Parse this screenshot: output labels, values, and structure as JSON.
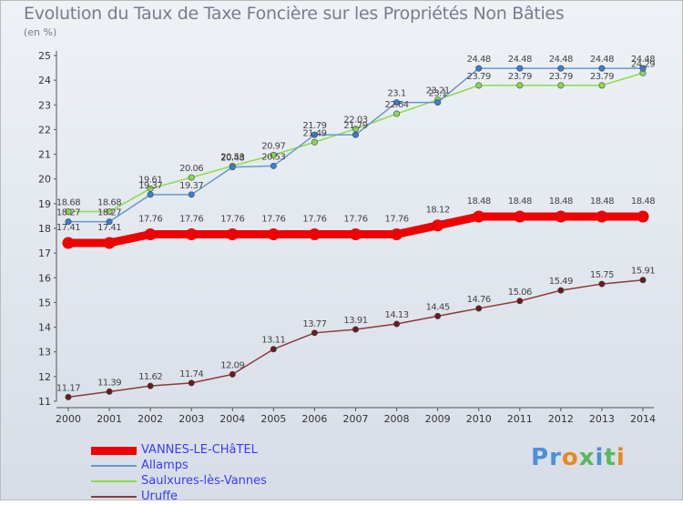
{
  "header": {
    "title": "Evolution du Taux de Taxe Foncière sur les Propriétés Non Bâties",
    "unit": "(en %)"
  },
  "logo": {
    "text": "Proxiti",
    "colors": [
      "#4a90d9",
      "#4a90d9",
      "#e8871e",
      "#5cb85c",
      "#4a90d9",
      "#5cb85c",
      "#e8871e"
    ]
  },
  "chart_data": {
    "type": "line",
    "title": "Evolution du Taux de Taxe Foncière sur les Propriétés Non Bâties",
    "ylabel": "(en %)",
    "xlabel": "",
    "x": [
      2000,
      2001,
      2002,
      2003,
      2004,
      2005,
      2006,
      2007,
      2008,
      2009,
      2010,
      2011,
      2012,
      2013,
      2014
    ],
    "ylim": [
      11,
      25
    ],
    "yticks": [
      11,
      12,
      13,
      14,
      15,
      16,
      17,
      18,
      19,
      20,
      21,
      22,
      23,
      24,
      25
    ],
    "grid": false,
    "legend_position": "bottom-left",
    "series": [
      {
        "name": "VANNES-LE-CHâTEL",
        "color": "#ee0000",
        "values": [
          17.41,
          17.41,
          17.76,
          17.76,
          17.76,
          17.76,
          17.76,
          17.76,
          17.76,
          18.12,
          18.48,
          18.48,
          18.48,
          18.48,
          18.48
        ],
        "labels": [
          "17.41",
          "17.41",
          "17.76",
          "17.76",
          "17.76",
          "17.76",
          "17.76",
          "17.76",
          "17.76",
          "18.12",
          "18.48",
          "18.48",
          "18.48",
          "18.48",
          "18.48"
        ]
      },
      {
        "name": "Allamps",
        "color": "#6699cc",
        "values": [
          18.27,
          18.27,
          19.37,
          19.37,
          20.48,
          20.53,
          21.79,
          21.79,
          23.1,
          23.1,
          24.48,
          24.48,
          24.48,
          24.48,
          24.48
        ],
        "labels": [
          "18.27",
          "18.27",
          "19.37",
          "19.37",
          "20.48",
          "20.53",
          "21.79",
          "21.79",
          "23.1",
          "23.1",
          "24.48",
          "24.48",
          "24.48",
          "24.48",
          "24.48"
        ]
      },
      {
        "name": "Saulxures-lès-Vannes",
        "color": "#88dd44",
        "values": [
          18.68,
          18.68,
          19.61,
          20.06,
          20.53,
          20.97,
          21.49,
          22.03,
          22.64,
          23.21,
          23.79,
          23.79,
          23.79,
          23.79,
          24.29
        ],
        "labels": [
          "18.68",
          "18.68",
          "19.61",
          "20.06",
          "20.53",
          "20.97",
          "21.49",
          "22.03",
          "22.64",
          "23.21",
          "23.79",
          "23.79",
          "23.79",
          "23.79",
          "24.29"
        ]
      },
      {
        "name": "Uruffe",
        "color": "#8b3a3a",
        "values": [
          11.17,
          11.39,
          11.62,
          11.74,
          12.09,
          13.11,
          13.77,
          13.91,
          14.13,
          14.45,
          14.76,
          15.06,
          15.49,
          15.75,
          15.91
        ],
        "labels": [
          "11.17",
          "11.39",
          "11.62",
          "11.74",
          "12.09",
          "13.11",
          "13.77",
          "13.91",
          "14.13",
          "14.45",
          "14.76",
          "15.06",
          "15.49",
          "15.75",
          "15.91"
        ]
      }
    ]
  }
}
